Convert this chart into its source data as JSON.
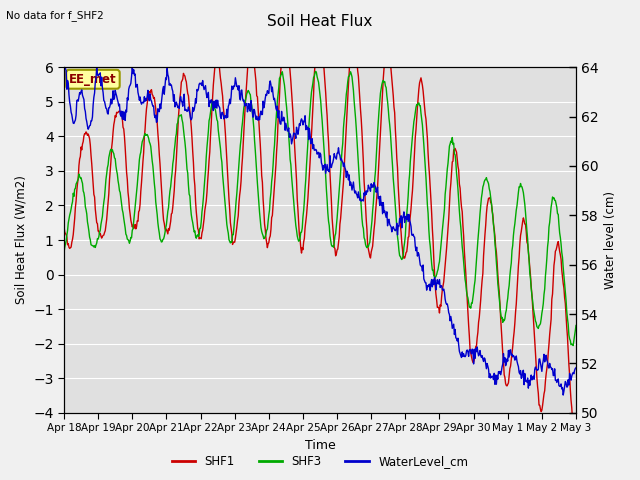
{
  "title": "Soil Heat Flux",
  "note": "No data for f_SHF2",
  "ylabel_left": "Soil Heat Flux (W/m2)",
  "ylabel_right": "Water level (cm)",
  "xlabel": "Time",
  "ylim_left": [
    -4.0,
    6.0
  ],
  "ylim_right": [
    50,
    64
  ],
  "yticks_left": [
    -4.0,
    -3.0,
    -2.0,
    -1.0,
    0.0,
    1.0,
    2.0,
    3.0,
    4.0,
    5.0,
    6.0
  ],
  "yticks_right": [
    50,
    52,
    54,
    56,
    58,
    60,
    62,
    64
  ],
  "fig_bg_color": "#f0f0f0",
  "plot_bg_color": "#e0e0e0",
  "shf1_color": "#cc0000",
  "shf3_color": "#00aa00",
  "water_color": "#0000cc",
  "grid_color": "#ffffff",
  "annotation_text": "EE_met",
  "xtick_labels": [
    "Apr 18",
    "Apr 19",
    "Apr 20",
    "Apr 21",
    "Apr 22",
    "Apr 23",
    "Apr 24",
    "Apr 25",
    "Apr 26",
    "Apr 27",
    "Apr 28",
    "Apr 29",
    "Apr 30",
    "May 1",
    "May 2",
    "May 3"
  ]
}
